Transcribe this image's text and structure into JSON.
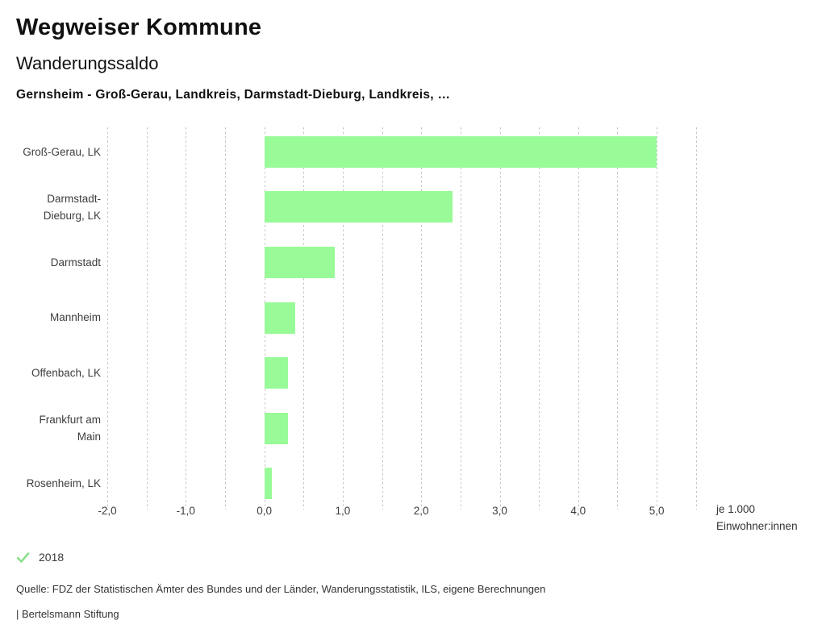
{
  "header": {
    "app_title": "Wegweiser Kommune",
    "chart_title": "Wanderungssaldo",
    "subtitle": "Gernsheim - Groß-Gerau, Landkreis, Darmstadt-Dieburg, Landkreis, …"
  },
  "legend": {
    "items": [
      {
        "label": "2018",
        "checked": true
      }
    ]
  },
  "axis_unit": {
    "line1": "je 1.000",
    "line2": "Einwohner:innen"
  },
  "footer": {
    "source": "Quelle: FDZ der Statistischen Ämter des Bundes und der Länder, Wanderungsstatistik, ILS, eigene Berechnungen",
    "branding": "| Bertelsmann Stiftung"
  },
  "colors": {
    "bar": "#98fb98",
    "check": "#8ce08c",
    "grid": "#c3c3c3"
  },
  "chart_data": {
    "type": "bar",
    "orientation": "horizontal",
    "title": "Wanderungssaldo",
    "subtitle": "Gernsheim - Groß-Gerau, Landkreis, Darmstadt-Dieburg, Landkreis, …",
    "categories": [
      "Groß-Gerau, LK",
      "Darmstadt-Dieburg, LK",
      "Darmstadt",
      "Mannheim",
      "Offenbach, LK",
      "Frankfurt am Main",
      "Rosenheim, LK"
    ],
    "category_label_lines": [
      [
        "Groß-Gerau, LK"
      ],
      [
        "Darmstadt-",
        "Dieburg, LK"
      ],
      [
        "Darmstadt"
      ],
      [
        "Mannheim"
      ],
      [
        "Offenbach, LK"
      ],
      [
        "Frankfurt am",
        "Main"
      ],
      [
        "Rosenheim, LK"
      ]
    ],
    "series": [
      {
        "name": "2018",
        "values": [
          5.0,
          2.4,
          0.9,
          0.4,
          0.3,
          0.3,
          0.1
        ]
      }
    ],
    "xlabel": "je 1.000 Einwohner:innen",
    "ylabel": "",
    "xlim": [
      -2.0,
      5.5
    ],
    "gridline_step": 0.5,
    "grid": "vertical-dashed",
    "xticks": [
      {
        "value": -2.0,
        "label": "-2,0"
      },
      {
        "value": -1.0,
        "label": "-1,0"
      },
      {
        "value": 0.0,
        "label": "0,0"
      },
      {
        "value": 1.0,
        "label": "1,0"
      },
      {
        "value": 2.0,
        "label": "2,0"
      },
      {
        "value": 3.0,
        "label": "3,0"
      },
      {
        "value": 4.0,
        "label": "4,0"
      },
      {
        "value": 5.0,
        "label": "5,0"
      }
    ],
    "legend_position": "bottom-left"
  }
}
